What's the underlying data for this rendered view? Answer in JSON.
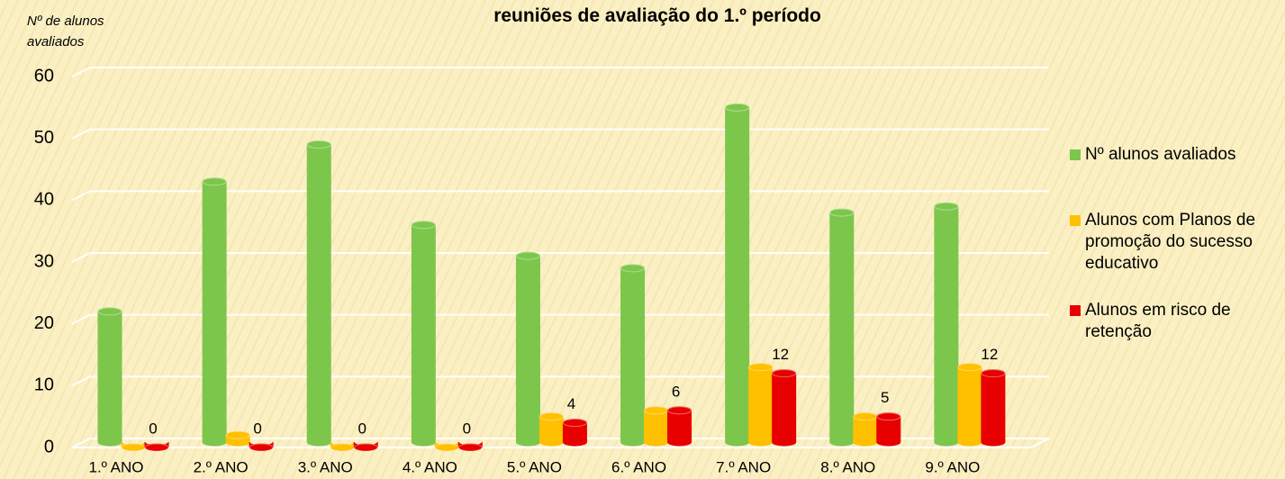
{
  "chart_data": {
    "type": "bar",
    "title": "reuniões de avaliação do 1.º período",
    "y_label": "Nº de alunos avaliados",
    "categories": [
      "1.º ANO",
      "2.º ANO",
      "3.º ANO",
      "4.º ANO",
      "5.º ANO",
      "6.º ANO",
      "7.º ANO",
      "8.º ANO",
      "9.º ANO"
    ],
    "series": [
      {
        "name": "Nº alunos avaliados",
        "color": "#7cc64c",
        "values": [
          22,
          43,
          49,
          36,
          31,
          29,
          55,
          38,
          39
        ]
      },
      {
        "name": "Alunos com Planos de promoção do sucesso educativo",
        "color": "#ffc000",
        "values": [
          0,
          2,
          0,
          0,
          5,
          6,
          13,
          5,
          13
        ]
      },
      {
        "name": "Alunos em risco de retenção",
        "color": "#e80000",
        "values": [
          0,
          0,
          0,
          0,
          4,
          6,
          12,
          5,
          12
        ],
        "data_labels": true
      }
    ],
    "ylim": [
      0,
      60
    ],
    "yticks": [
      0,
      10,
      20,
      30,
      40,
      50,
      60
    ],
    "grid": true,
    "legend": "right"
  }
}
